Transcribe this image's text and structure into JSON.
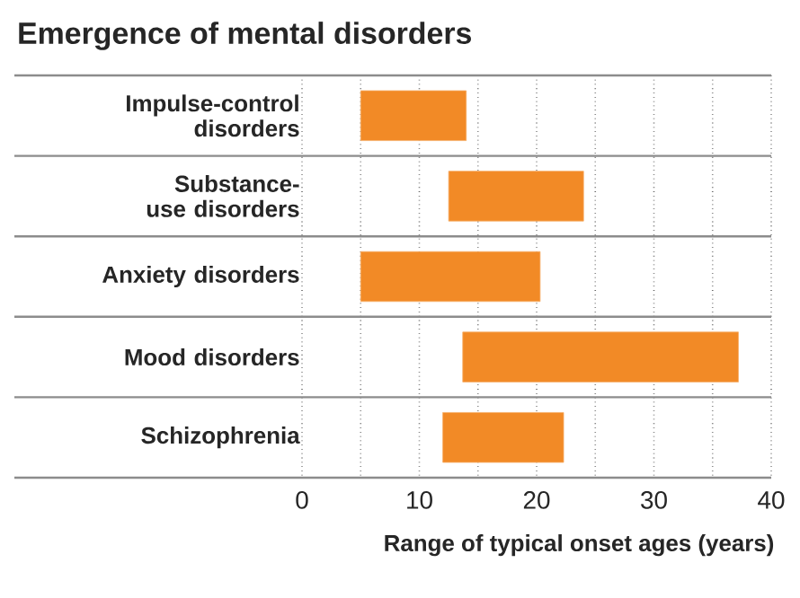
{
  "chart_data": {
    "type": "bar",
    "orientation": "horizontal",
    "title": "Emergence of mental disorders",
    "xlabel": "Range of typical onset ages (years)",
    "categories": [
      "Impulse-control disorders",
      "Substance-use disorders",
      "Anxiety disorders",
      "Mood disorders",
      "Schizophrenia"
    ],
    "base": [
      5,
      12.5,
      5,
      13.7,
      12
    ],
    "values": [
      9,
      11.5,
      15.3,
      23.5,
      10.3
    ],
    "color": "#f28a26",
    "xlim": [
      0,
      40
    ],
    "xticks": [
      0,
      {
        "value": 5,
        "label": null
      },
      10,
      {
        "value": 15,
        "label": null
      },
      20,
      {
        "value": 25,
        "label": null
      },
      30,
      {
        "value": 35,
        "label": null
      },
      40
    ],
    "grid": "x"
  }
}
